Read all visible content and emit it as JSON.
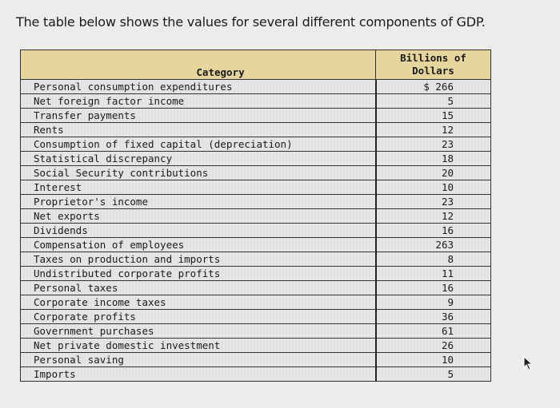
{
  "intro_text": "The table below shows the values for several different components of GDP.",
  "table": {
    "headers": {
      "category": "Category",
      "value": "Billions of Dollars"
    },
    "rows": [
      {
        "category": "Personal consumption expenditures",
        "value": "$ 266"
      },
      {
        "category": "Net foreign factor income",
        "value": "5"
      },
      {
        "category": "Transfer payments",
        "value": "15"
      },
      {
        "category": "Rents",
        "value": "12"
      },
      {
        "category": "Consumption of fixed capital (depreciation)",
        "value": "23"
      },
      {
        "category": "Statistical discrepancy",
        "value": "18"
      },
      {
        "category": "Social Security contributions",
        "value": "20"
      },
      {
        "category": "Interest",
        "value": "10"
      },
      {
        "category": "Proprietor's income",
        "value": "23"
      },
      {
        "category": "Net exports",
        "value": "12"
      },
      {
        "category": "Dividends",
        "value": "16"
      },
      {
        "category": "Compensation of employees",
        "value": "263"
      },
      {
        "category": "Taxes on production and imports",
        "value": "8"
      },
      {
        "category": "Undistributed corporate profits",
        "value": "11"
      },
      {
        "category": "Personal taxes",
        "value": "16"
      },
      {
        "category": "Corporate income taxes",
        "value": "9"
      },
      {
        "category": "Corporate profits",
        "value": "36"
      },
      {
        "category": "Government purchases",
        "value": "61"
      },
      {
        "category": "Net private domestic investment",
        "value": "26"
      },
      {
        "category": "Personal saving",
        "value": "10"
      },
      {
        "category": "Imports",
        "value": "5"
      }
    ]
  },
  "colors": {
    "header_bg": "#e6d59c"
  },
  "icons": {
    "cursor": "mouse-pointer-icon"
  }
}
